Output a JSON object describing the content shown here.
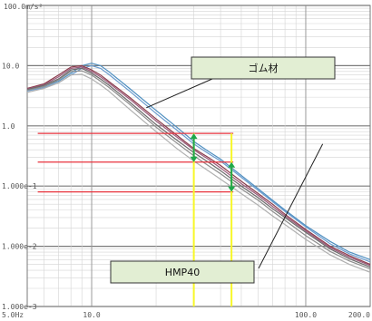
{
  "chart_data": {
    "type": "line",
    "title": "",
    "xlabel": "",
    "ylabel": "",
    "x_scale": "log",
    "y_scale": "log",
    "xlim": [
      5.0,
      200.0
    ],
    "ylim": [
      0.001,
      100.0
    ],
    "grid": true,
    "y_unit_label": "100.0m/s²",
    "x_ticks": [
      {
        "value": 5.0,
        "label": "5.0Hz"
      },
      {
        "value": 10.0,
        "label": "10.0"
      },
      {
        "value": 100.0,
        "label": "100.0"
      },
      {
        "value": 200.0,
        "label": "200.0"
      }
    ],
    "y_ticks": [
      {
        "value": 10.0,
        "label": "10.0"
      },
      {
        "value": 1.0,
        "label": "1.0"
      },
      {
        "value": 0.1,
        "label": "1.000e-1"
      },
      {
        "value": 0.01,
        "label": "1.000e-2"
      },
      {
        "value": 0.001,
        "label": "1.000e-3"
      }
    ],
    "series": [
      {
        "color": "#4f8fc0",
        "x": [
          5,
          6,
          7,
          8,
          9,
          10,
          11,
          12,
          15,
          20,
          25,
          30,
          35,
          40,
          50,
          60,
          70,
          80,
          100,
          130,
          160,
          200
        ],
        "y": [
          4.0,
          4.5,
          5.5,
          7.5,
          10,
          11,
          10,
          8,
          4.2,
          1.8,
          0.95,
          0.55,
          0.38,
          0.28,
          0.15,
          0.09,
          0.058,
          0.04,
          0.022,
          0.012,
          0.008,
          0.006
        ]
      },
      {
        "color": "#6a9ccf",
        "x": [
          5,
          6,
          7,
          8,
          9,
          10,
          11,
          12,
          15,
          20,
          25,
          30,
          35,
          40,
          50,
          60,
          70,
          80,
          100,
          130,
          160,
          200
        ],
        "y": [
          3.8,
          4.3,
          5.2,
          7,
          9,
          10,
          9,
          7.2,
          3.8,
          1.6,
          0.85,
          0.5,
          0.35,
          0.26,
          0.14,
          0.085,
          0.055,
          0.038,
          0.021,
          0.011,
          0.0075,
          0.0055
        ]
      },
      {
        "color": "#8a3a4a",
        "x": [
          5,
          6,
          7,
          8,
          9,
          10,
          11,
          12,
          15,
          20,
          25,
          30,
          35,
          40,
          50,
          60,
          70,
          80,
          100,
          130,
          160,
          200
        ],
        "y": [
          4.2,
          5,
          7,
          9.5,
          10,
          8.5,
          7,
          5.5,
          3,
          1.3,
          0.7,
          0.42,
          0.3,
          0.22,
          0.12,
          0.075,
          0.05,
          0.034,
          0.019,
          0.01,
          0.007,
          0.005
        ]
      },
      {
        "color": "#9a5a7a",
        "x": [
          5,
          6,
          7,
          8,
          9,
          10,
          11,
          12,
          15,
          20,
          25,
          30,
          35,
          40,
          50,
          60,
          70,
          80,
          100,
          130,
          160,
          200
        ],
        "y": [
          4.1,
          4.8,
          6.5,
          9,
          9.5,
          8,
          6.5,
          5.2,
          2.8,
          1.2,
          0.65,
          0.4,
          0.28,
          0.2,
          0.11,
          0.07,
          0.046,
          0.032,
          0.018,
          0.0095,
          0.0066,
          0.0048
        ]
      },
      {
        "color": "#6a6a6a",
        "x": [
          5,
          6,
          7,
          8,
          9,
          10,
          11,
          12,
          15,
          20,
          25,
          30,
          35,
          40,
          50,
          60,
          70,
          80,
          100,
          130,
          160,
          200
        ],
        "y": [
          4.0,
          4.7,
          6,
          8.5,
          9,
          7.5,
          6,
          4.8,
          2.5,
          1.05,
          0.58,
          0.36,
          0.25,
          0.18,
          0.1,
          0.064,
          0.042,
          0.03,
          0.017,
          0.009,
          0.0062,
          0.0045
        ]
      },
      {
        "color": "#8d8d8d",
        "x": [
          5,
          6,
          7,
          8,
          9,
          10,
          11,
          12,
          15,
          20,
          25,
          30,
          35,
          40,
          50,
          60,
          70,
          80,
          100,
          130,
          160,
          200
        ],
        "y": [
          3.9,
          4.5,
          5.8,
          8,
          8.2,
          7,
          5.5,
          4.4,
          2.3,
          0.95,
          0.52,
          0.32,
          0.22,
          0.16,
          0.09,
          0.058,
          0.038,
          0.027,
          0.015,
          0.0082,
          0.0057,
          0.0042
        ]
      },
      {
        "color": "#b0b0b0",
        "x": [
          5,
          6,
          7,
          8,
          9,
          10,
          11,
          12,
          15,
          20,
          25,
          30,
          35,
          40,
          50,
          60,
          70,
          80,
          100,
          130,
          160,
          200
        ],
        "y": [
          3.6,
          4.2,
          5.2,
          7,
          7.2,
          6,
          4.8,
          3.8,
          1.9,
          0.8,
          0.42,
          0.26,
          0.18,
          0.13,
          0.075,
          0.048,
          0.032,
          0.023,
          0.013,
          0.0072,
          0.005,
          0.0037
        ]
      }
    ],
    "reference_lines": {
      "red_horizontal_y": [
        0.75,
        0.25,
        0.08
      ],
      "yellow_vertical_x": [
        30.0,
        45.0
      ]
    },
    "annotations": {
      "callouts": [
        {
          "text": "ゴム材",
          "target_x": 18.0,
          "target_y": 2.0
        },
        {
          "text": "HMP40",
          "target_x": 120.0,
          "target_y": 0.5
        }
      ],
      "arrows": [
        {
          "x": 30.0,
          "from_y": 0.75,
          "to_y": 0.25
        },
        {
          "x": 45.0,
          "from_y": 0.25,
          "to_y": 0.08
        }
      ]
    },
    "colors": {
      "reference_line": "#e8323c",
      "marker_line": "#f7f728",
      "arrow": "#1fa84a",
      "callout_fill": "#e2eed3",
      "grid": "#d4d4d4",
      "frame": "#7a7a7a"
    }
  }
}
